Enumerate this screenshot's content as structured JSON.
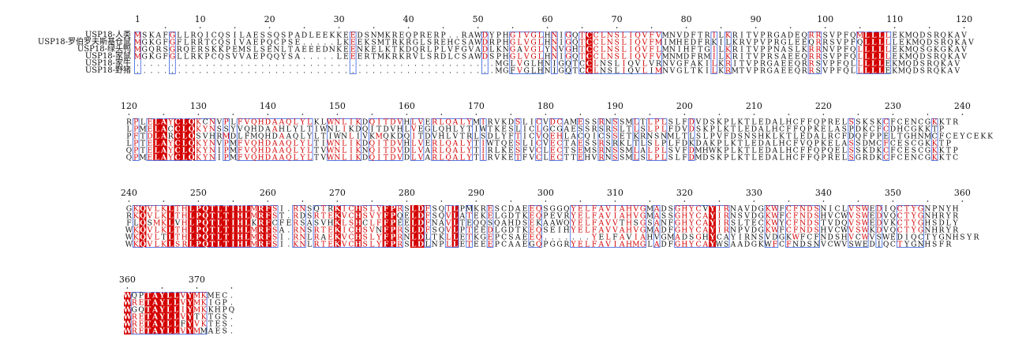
{
  "figure": {
    "type": "multiple-sequence-alignment",
    "styling": "strict identity columns: white text on red background; similar columns: red text inside blue box; other residues black"
  },
  "colors": {
    "identical_bg": "#d40000",
    "identical_text": "#ffffff",
    "similar_text": "#d40000",
    "similar_box": "#4a6fe0",
    "normal_text": "#111111",
    "label_text": "#111111"
  },
  "sequence_names": [
    "USP18-人类",
    "USP18-罗伯罗夫斯基仓鼠",
    "USP18-绿头鸭",
    "USP18-家鼠",
    "USP18-家牛",
    "USP18-野猪"
  ],
  "blocks": [
    {
      "start": 1,
      "rows": [
        "MSKAFGLLRQICQSILAESSQSPADLEEKKEEDSNMKREQPRERP..RAWDYPHGIVGLHNIGQTCCLNSLIQVFVMNVDFTRILKRITVPRGADEQRRSVPFQMLLLLEKMQDSRQKAV",
        "MGKGFGFLRRTCQSIVAEPQCPSE.....LKEEKSMTRKRGLSREHCSAWDRPHGLVGLHNIGQTCCLNSLIQVFMIMHEDFRKILKRVPVPRGLEEQRRSVPFQLLLLLEKMQDSRQKAV",
        "MGQRSGRQERSKKPEMSLSENLTAEEEDNKEENKELKTKDQRLPLVFGVADLKNGAVGLYNVGHTCCLNSLIQVFLMNIHFTGILKRITVPPNASLKRRNVPFQLLLLLEKMQSGKGKAV",
        "MGKGFGLLRKPCQSVVAEPQQYSA.....LEEERTMKRKRVLSRDLCSAWDSPHGLVGLHNIGQTCCLNSLIQVFVMNMDFRMILKRITVPRSAEEQRRSVPFQLLLLLEKMQDSRQKAV",
        "....................................................MGLVGLHNIGQTCCLNSLIQVLVRNVGFAKILKRITVPRGAEEQRRSVPFQLLLLLEKMQDSRQKAV",
        "....................................................MGFVGLHNIGQTCCLNSLIQVLIMNVGLTKILKRMTVPRGAEEQRRSVPFQLLLLLEKMQDSRQKAV"
      ]
    },
    {
      "start": 120,
      "rows": [
        "RPLELAYCLQKCNVPLFVQHDAAQLYLKLWNLIKDQITDVHLVERLQALYMIRVKDSLICVDCAMESSRNSSMLTLPLSLFDVDSKPLKTLEDALHCFFQPRELSSKSKCFCENCGKKTR",
        "LPMELACCLQKYNSSYVQHDAAHLYLTIWNLIKDQITDVHLVEGLQHLYTIWTKESLICLGCGAESSRSRSLTLSLPLFDVDSKPLKTLEDALHCFFQPKELASPDKCFCDHCGKKTP",
        "PFTDLARCLQSVHRMDLFMQHDAAQLYLTIWNLIVKMQKDQITDVHLVTRLSDLYFTICVQEHLACQICSSETKRNSNMLTLSLPVFDSNSHKLKTLEDALRCFDQFPPELTGHNMCFCEYCEKKTP",
        "LPTELAYCLQKYNVPMFVQHDAAQLYLTIWNLIKDQITDVHLVERLQALYTIWTQESLICVECTAESSRSRKLTLSLPLFDKDAKPLKTLEDALHCFVQPKELASSDMCFCESCGKKTP",
        "QPTELAYCLQKYNIPMFVQHDAAQLYLTVWNLIKNQITDVDLVARLQALYTIRLKESFVCLECTSEMSRNSSMLALPLSVFDMHWKPLKTLEDALHCFFQPQELSSKDKCFCESCGKKTP",
        "QPMELAYCLQKYNIPMFVQHDAAQLYLTVWNLIKDQITDVDLVARLQALYTIRVKETFVCLECTTEHVRNSSMLSLPLSLFDMDSKPLKTLEDALHCFFQPRELSGRDKCFCENCGKKTC"
      ]
    },
    {
      "start": 240,
      "rows": [
        "GKQVLKLTHLPQTLTIHLMRFSI.RNSQTRKICHSLYFPRSLDFSQILPMKRESCDAEEQSGGQYELFAVIAHVGMADSGHYCVYIRNAVDGKWFCFNDSNICLVSWEDIQCTYGNPNYH",
        "RKQVLKLTHLPQTLTIHLMRFST.RDSRTEKVCHSVYFPQELDFSQVLATEKELGDTKEQPEVRYELFAVIAHVGMASSGHYCAYIRNSVDGKWFCFNDSHVCWVSWEDVQCTYGNHRYR",
        "FLQSMKLVHLPQTLTIHLKRFCFERSASVHKLSHCLFFPEELDFNAVLTEQQSQAHDSEKAAWQYELFAVVTHSGSANFGHYCAYIRSLTECKWYCFNDSTVDQVSWEDVKCTYGHSDLY",
        "WKQVLKLTHLPQTLTIHLMRFSA.RNSRTEKICHSVNFPRSLDFSQVLPTEEDLGDTKEQSEIHYELFAVVAHVGMADFGHYCAYIRNPVDGKWFCFNDSHVCWVSWKDVQCTYGNHRYR",
        "WKQVLTLTHLPQTLTIHLMRFSI.RNLRAEKVCHSLYFPRNLDLTKLLETKGEPCSAEEQ.......YELFAVIAHVGMADSGHYCAYIRNSVDGKWFCFNDSHVCWVSWEDIQCTYGNHSYR",
        "WKQVLKLSRLPQTLTIHLMRFSI.KNLRTEKVCHSLYFPRSLDLNPLLETEEEPCAAEGQPGGRYELFAVIAHMGLADFGHYCAYWSAADGKWFCFNDSNVCWVSWEDIQCTYGNHSFR"
      ]
    },
    {
      "start": 360,
      "rows": [
        "WQPTAYLLVYMKMEC.",
        "WRETAYLLVYMKIGP.",
        "WGQTAYLLIYMKKHPQ",
        "WRETAYLLVYTKTGS.",
        "WRETAYLLFYVKTES.",
        "WRETAYLLVYMMAES."
      ]
    }
  ]
}
